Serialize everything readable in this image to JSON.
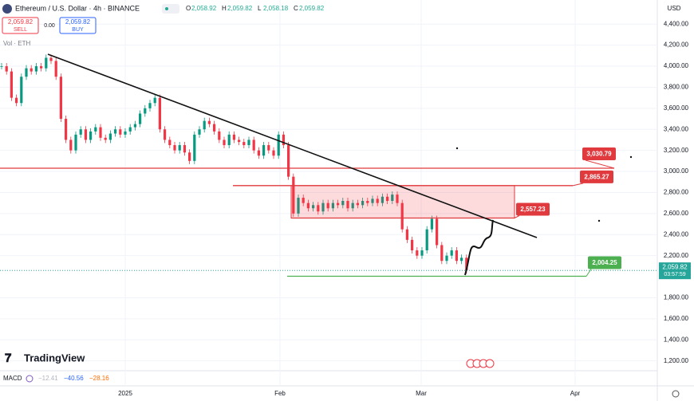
{
  "header": {
    "symbol": "Ethereum / U.S. Dollar · 4h · BINANCE",
    "ohlc": [
      {
        "key": "O",
        "value": "2,058.92"
      },
      {
        "key": "H",
        "value": "2,059.82"
      },
      {
        "key": "L",
        "value": "2,058.18"
      },
      {
        "key": "C",
        "value": "2,059.82"
      }
    ]
  },
  "trade": {
    "sell_price": "2,059.82",
    "sell": "SELL",
    "spread": "0.00",
    "buy_price": "2,059.82",
    "buy": "BUY"
  },
  "volume": "Vol · ETH",
  "currency": "USD",
  "price_axis": {
    "ylim": [
      993,
      4629
    ],
    "ticks": [
      {
        "value": 4400,
        "label": "4,400.00"
      },
      {
        "value": 4200,
        "label": "4,200.00"
      },
      {
        "value": 4000,
        "label": "4,000.00"
      },
      {
        "value": 3800,
        "label": "3,800.00"
      },
      {
        "value": 3600,
        "label": "3,600.00"
      },
      {
        "value": 3400,
        "label": "3,400.00"
      },
      {
        "value": 3200,
        "label": "3,200.00"
      },
      {
        "value": 3000,
        "label": "3,000.00"
      },
      {
        "value": 2800,
        "label": "2,800.00"
      },
      {
        "value": 2600,
        "label": "2,600.00"
      },
      {
        "value": 2400,
        "label": "2,400.00"
      },
      {
        "value": 2200,
        "label": "2,200.00"
      },
      {
        "value": 1800,
        "label": "1,800.00"
      },
      {
        "value": 1600,
        "label": "1,600.00"
      },
      {
        "value": 1400,
        "label": "1,400.00"
      },
      {
        "value": 1200,
        "label": "1,200.00"
      }
    ]
  },
  "time_axis": [
    "2025",
    "Feb",
    "Mar",
    "Apr"
  ],
  "prices": [
    4000,
    3950,
    3700,
    3650,
    3900,
    3980,
    3950,
    4000,
    3980,
    4080,
    4050,
    3900,
    3500,
    3300,
    3200,
    3350,
    3400,
    3300,
    3380,
    3420,
    3320,
    3300,
    3360,
    3400,
    3350,
    3380,
    3420,
    3450,
    3550,
    3600,
    3650,
    3700,
    3400,
    3300,
    3250,
    3200,
    3250,
    3180,
    3100,
    3350,
    3400,
    3480,
    3450,
    3380,
    3300,
    3250,
    3350,
    3300,
    3280,
    3250,
    3300,
    3200,
    3150,
    3250,
    3200,
    3150,
    3350,
    3250,
    2950,
    2600,
    2750,
    2700,
    2650,
    2680,
    2620,
    2700,
    2650,
    2700,
    2680,
    2720,
    2650,
    2700,
    2680,
    2720,
    2700,
    2740,
    2700,
    2760,
    2720,
    2780,
    2700,
    2450,
    2350,
    2250,
    2200,
    2250,
    2450,
    2550,
    2300,
    2150,
    2200,
    2250,
    2150,
    2180,
    2060
  ],
  "levels": [
    {
      "value": 3030.79,
      "label": "3,030.79"
    },
    {
      "value": 2865.27,
      "label": "2,865.27"
    },
    {
      "value": 2557.23,
      "label": "2,557.23"
    },
    {
      "value": 2004.25,
      "label": "2,004.25"
    }
  ],
  "current": {
    "value": 2059.82,
    "label": "2,059.82",
    "countdown": "03:57:59"
  },
  "logo": "TradingView",
  "macd": {
    "name": "MACD",
    "values": [
      "−12.41",
      "−40.56",
      "−28.16"
    ]
  }
}
